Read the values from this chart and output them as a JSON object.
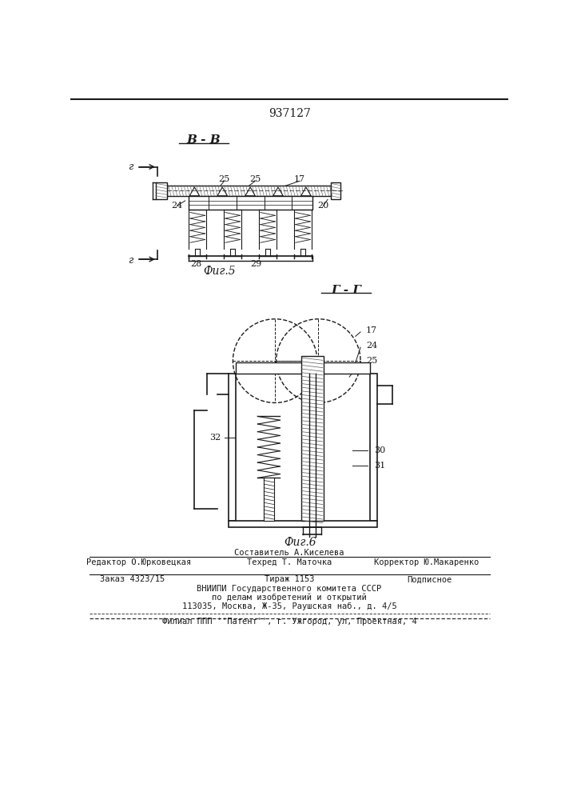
{
  "patent_number": "937127",
  "bg_color": "#ffffff",
  "fig5_label": "Фиг.5",
  "fig6_label": "Фиг.6",
  "section_b": "В - В",
  "section_g": "Г - Г",
  "footer_line1_left": "Редактор О.Юрковецкая",
  "footer_line1_center": "Техред Т. Маточка",
  "footer_line1_right": "Корректор Ю.Макаренко",
  "footer_line0": "Составитель А.Киселева",
  "footer_order": "Заказ 4323/15",
  "footer_tirazh": "Тираж 1153",
  "footer_podpisnoe": "Подписное",
  "footer_vniip1": "ВНИИПИ Государственного комитета СССР",
  "footer_vniip2": "по делам изобретений и открытий",
  "footer_vniip3": "113035, Москва, Ж-35, Раушская наб., д. 4/5",
  "footer_filial": "Филиал ППП ''Патент'', г. Ужгород, ул, Проектная, 4",
  "text_color": "#1a1a1a",
  "line_color": "#1a1a1a",
  "hatch_color": "#555555"
}
